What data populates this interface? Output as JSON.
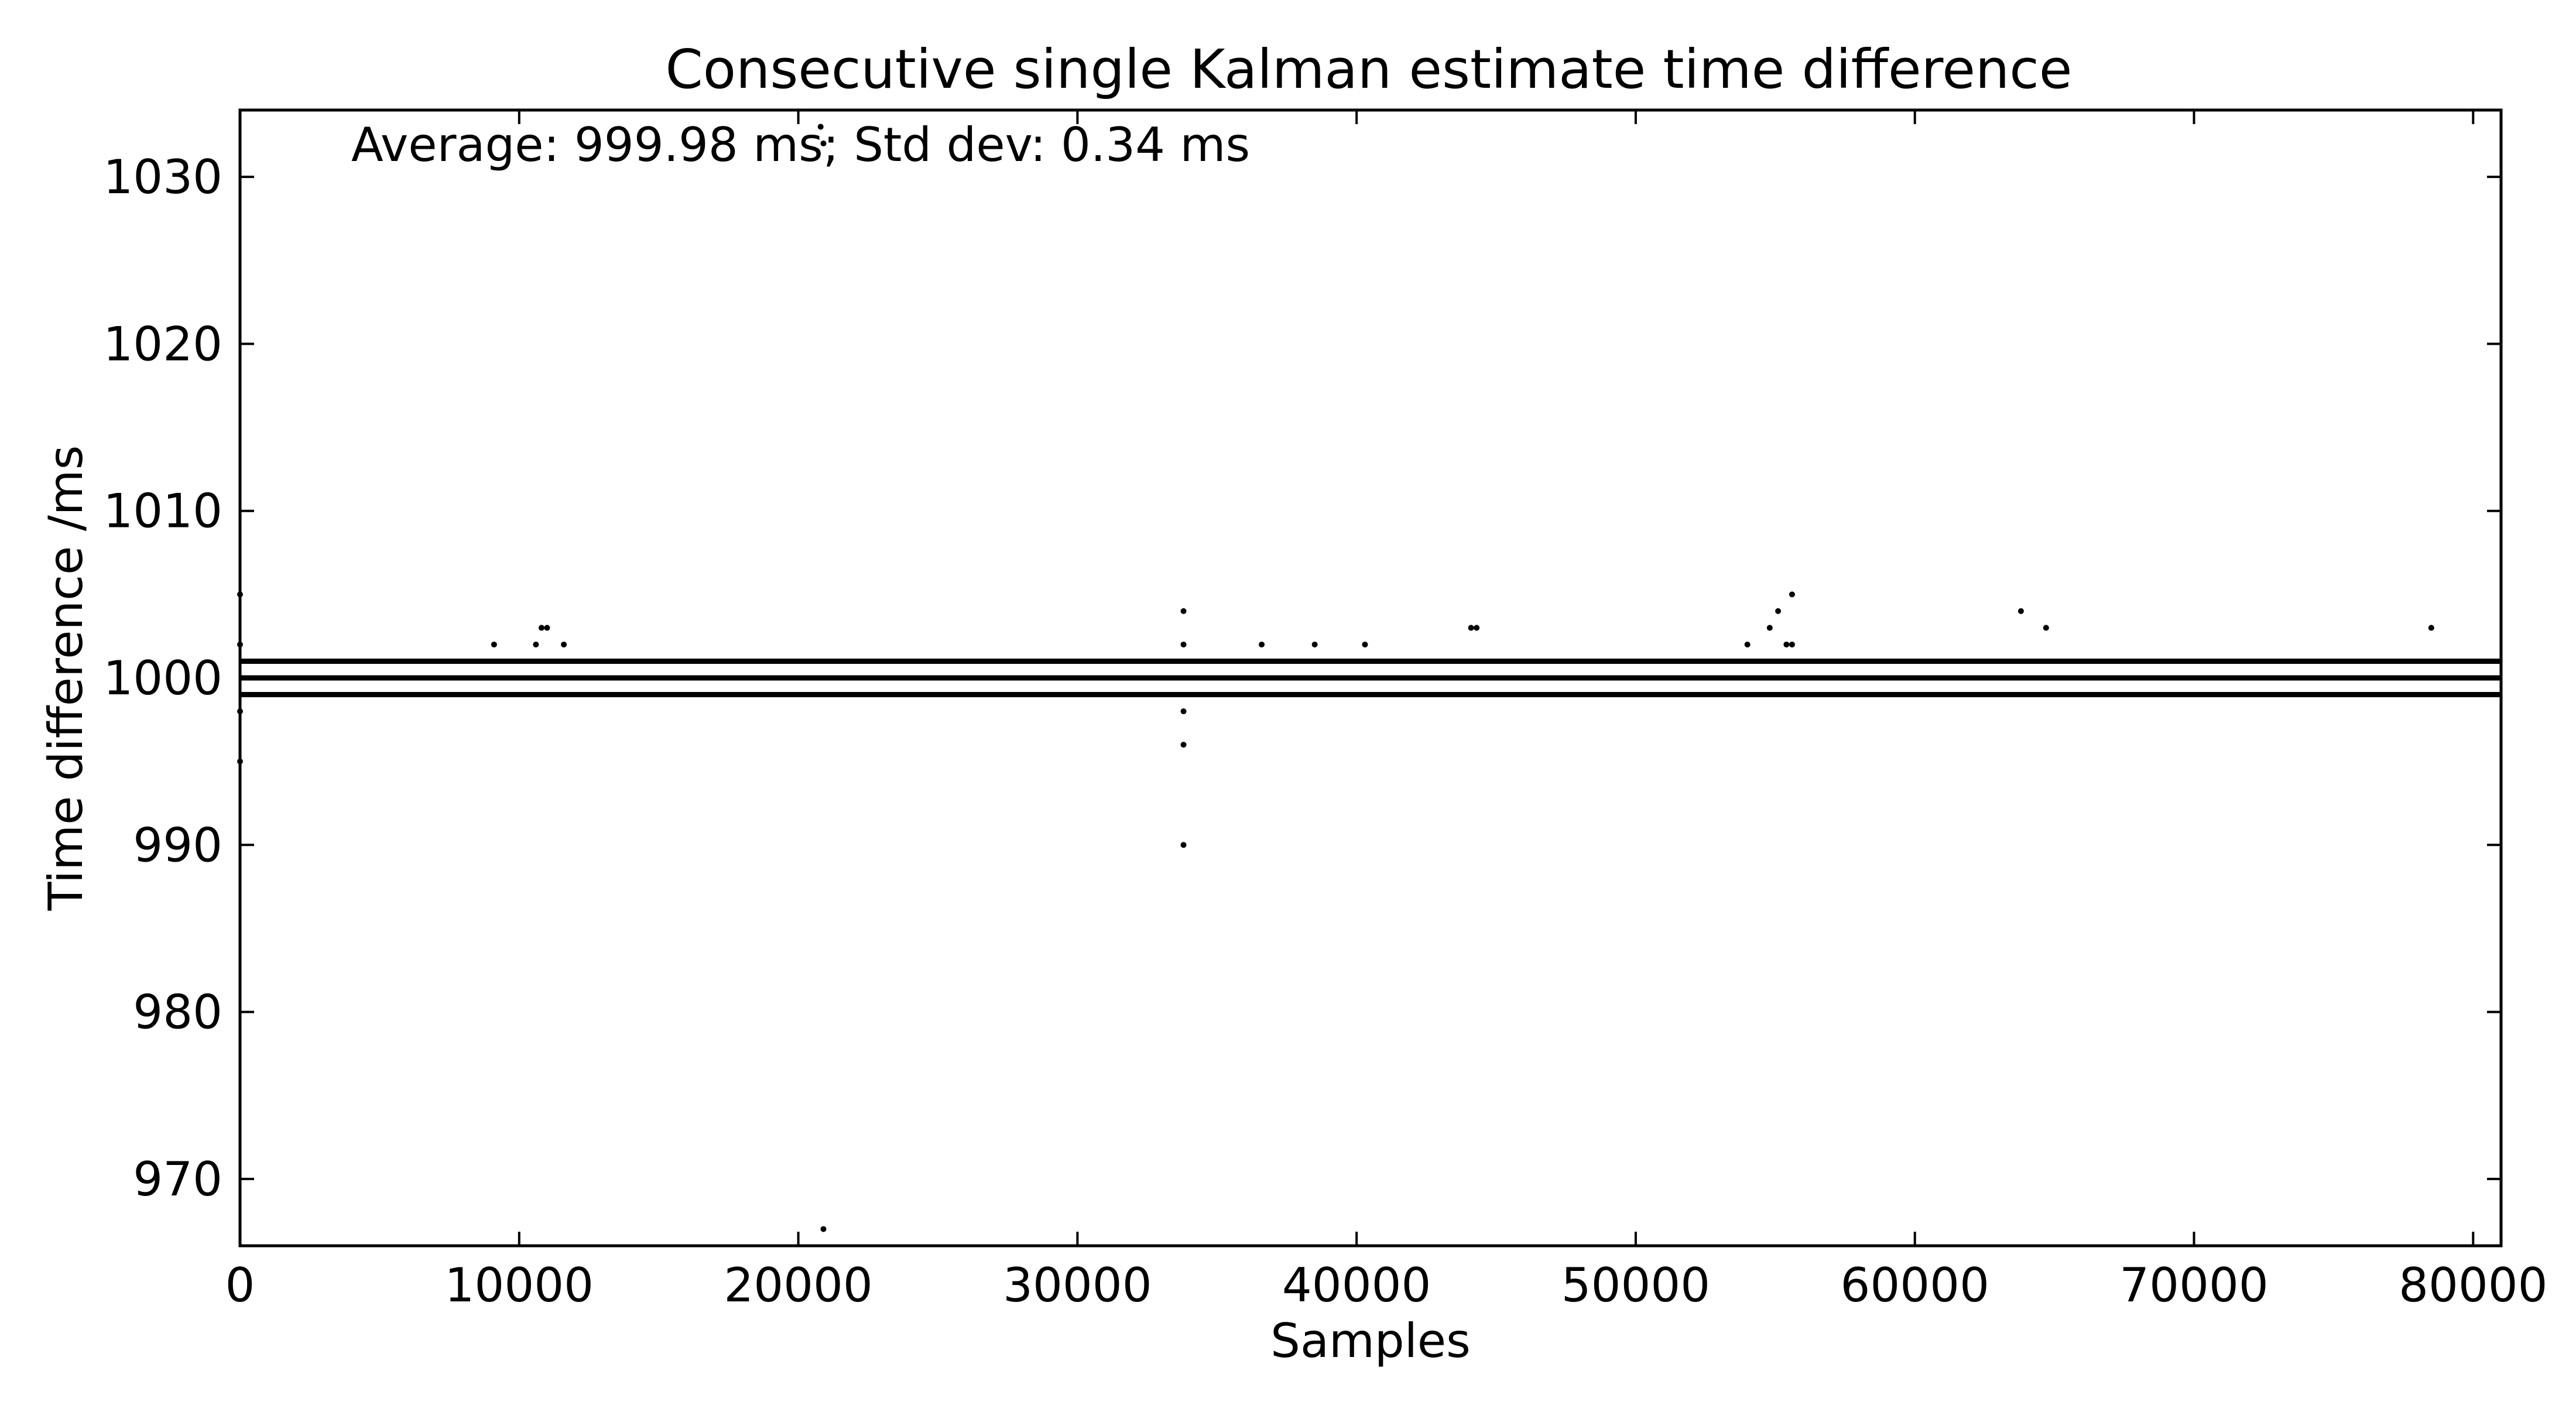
{
  "chart_data": {
    "type": "scatter",
    "title": "Consecutive single Kalman estimate time difference",
    "annotation": "Average: 999.98 ms;  Std dev: 0.34 ms",
    "xlabel": "Samples",
    "ylabel": "Time difference /ms",
    "xlim": [
      0,
      81000
    ],
    "ylim": [
      966,
      1034
    ],
    "x_ticks": [
      0,
      10000,
      20000,
      30000,
      40000,
      50000,
      60000,
      70000,
      80000
    ],
    "y_ticks": [
      970,
      980,
      990,
      1000,
      1010,
      1020,
      1030
    ],
    "grid": false,
    "color": "#000000",
    "dense_bands": [
      {
        "y": 999,
        "x_range": [
          0,
          81000
        ]
      },
      {
        "y": 1000,
        "x_range": [
          0,
          81000
        ]
      },
      {
        "y": 1001,
        "x_range": [
          0,
          81000
        ]
      }
    ],
    "outliers": [
      {
        "x": 0,
        "y": 1005
      },
      {
        "x": 0,
        "y": 1002
      },
      {
        "x": 0,
        "y": 998
      },
      {
        "x": 0,
        "y": 995
      },
      {
        "x": 9100,
        "y": 1002
      },
      {
        "x": 10600,
        "y": 1002
      },
      {
        "x": 10800,
        "y": 1003
      },
      {
        "x": 11000,
        "y": 1003
      },
      {
        "x": 11600,
        "y": 1002
      },
      {
        "x": 20800,
        "y": 1033
      },
      {
        "x": 20900,
        "y": 1032
      },
      {
        "x": 20900,
        "y": 967
      },
      {
        "x": 33800,
        "y": 1004
      },
      {
        "x": 33800,
        "y": 1002
      },
      {
        "x": 33800,
        "y": 998
      },
      {
        "x": 33800,
        "y": 996
      },
      {
        "x": 33800,
        "y": 990
      },
      {
        "x": 36600,
        "y": 1002
      },
      {
        "x": 38500,
        "y": 1002
      },
      {
        "x": 40300,
        "y": 1002
      },
      {
        "x": 44100,
        "y": 1003
      },
      {
        "x": 44300,
        "y": 1003
      },
      {
        "x": 54000,
        "y": 1002
      },
      {
        "x": 54800,
        "y": 1003
      },
      {
        "x": 55100,
        "y": 1004
      },
      {
        "x": 55400,
        "y": 1002
      },
      {
        "x": 55600,
        "y": 1005
      },
      {
        "x": 55600,
        "y": 1002
      },
      {
        "x": 63800,
        "y": 1004
      },
      {
        "x": 64700,
        "y": 1003
      },
      {
        "x": 78500,
        "y": 1003
      }
    ]
  }
}
